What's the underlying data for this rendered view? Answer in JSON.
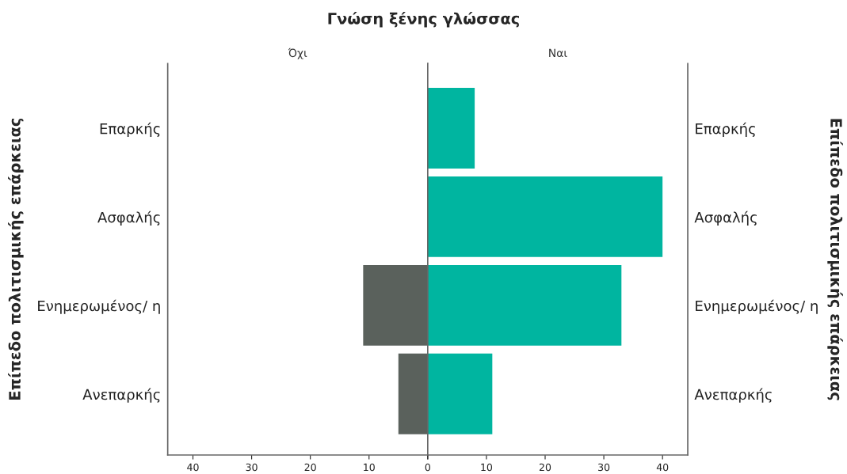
{
  "chart_data": [
    {
      "type": "bar",
      "orientation": "horizontal",
      "title": "Γνώση ξένης γλώσσας",
      "subtitle": "Όχι",
      "ylabel": "Επίπεδο πολιτισμικής επάρκειας",
      "categories": [
        "Επαρκής",
        "Ασφαλής",
        "Ενημερωμένος/ η",
        "Ανεπαρκής"
      ],
      "series": [
        {
          "color": "#5a615c",
          "values": [
            null,
            null,
            11,
            5
          ]
        }
      ],
      "xlim": [
        44.3,
        0
      ],
      "xticks": [
        40,
        30,
        20,
        10,
        {
          "value": 0,
          "label": null
        }
      ]
    },
    {
      "type": "bar",
      "orientation": "horizontal",
      "subtitle": "Ναι",
      "ylabel": "Επίπεδο πολιτισμικής επάρκειας",
      "categories": [
        "Επαρκής",
        "Ασφαλής",
        "Ενημερωμένος/ η",
        "Ανεπαρκής"
      ],
      "series": [
        {
          "color": "#00b5a0",
          "values": [
            8,
            40,
            33,
            11
          ]
        }
      ],
      "xlim": [
        0,
        44.3
      ],
      "xticks": [
        0,
        10,
        20,
        30,
        40
      ]
    }
  ]
}
